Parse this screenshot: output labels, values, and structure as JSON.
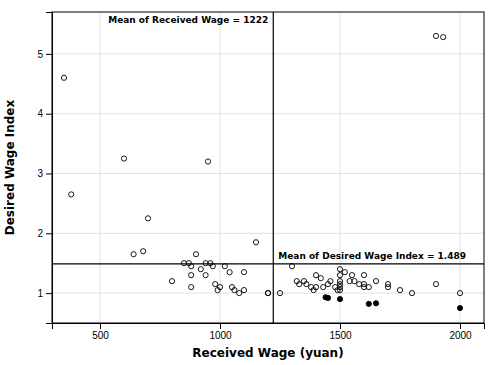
{
  "chart_data": {
    "type": "scatter",
    "x_label": "Received Wage (yuan)",
    "y_label": "Desired Wage Index",
    "xlim": [
      300,
      2100
    ],
    "ylim": [
      0.5,
      5.7
    ],
    "xticks": [
      500,
      1000,
      1500,
      2000
    ],
    "yticks": [
      1,
      2,
      3,
      4,
      5
    ],
    "grid": true,
    "series": [
      {
        "marker": "open",
        "color": "#000000",
        "x": [
          350,
          380,
          600,
          640,
          680,
          700,
          800,
          850,
          870,
          880,
          880,
          880,
          900,
          920,
          940,
          940,
          950,
          960,
          970,
          980,
          990,
          1000,
          1020,
          1040,
          1050,
          1060,
          1080,
          1100,
          1100,
          1150,
          1200,
          1200,
          1250,
          1300,
          1320,
          1330,
          1350,
          1360,
          1380,
          1390,
          1400,
          1400,
          1420,
          1430,
          1450,
          1460,
          1480,
          1490,
          1500,
          1500,
          1500,
          1500,
          1500,
          1500,
          1520,
          1540,
          1550,
          1560,
          1580,
          1600,
          1600,
          1600,
          1620,
          1650,
          1700,
          1700,
          1750,
          1800,
          1900,
          2000,
          1900
        ],
        "values": [
          4.6,
          2.65,
          3.25,
          1.65,
          1.7,
          2.25,
          1.2,
          1.5,
          1.5,
          1.45,
          1.3,
          1.1,
          1.65,
          1.4,
          1.5,
          1.3,
          3.2,
          1.5,
          1.45,
          1.15,
          1.05,
          1.1,
          1.45,
          1.35,
          1.1,
          1.05,
          1.0,
          1.35,
          1.05,
          1.85,
          1.0,
          1.0,
          1.0,
          1.45,
          1.2,
          1.15,
          1.2,
          1.15,
          1.1,
          1.05,
          1.3,
          1.1,
          1.25,
          1.1,
          1.15,
          1.2,
          1.1,
          1.05,
          1.4,
          1.3,
          1.2,
          1.15,
          1.1,
          1.05,
          1.35,
          1.2,
          1.3,
          1.2,
          1.15,
          1.3,
          1.15,
          1.1,
          1.1,
          1.2,
          1.15,
          1.1,
          1.05,
          1.0,
          1.15,
          1.0,
          5.3
        ]
      },
      {
        "marker": "filled",
        "color": "#000000",
        "x": [
          1440,
          1450,
          1500,
          1620,
          1650,
          2000
        ],
        "values": [
          0.93,
          0.92,
          0.9,
          0.82,
          0.83,
          0.75
        ]
      },
      {
        "marker": "open",
        "color": "#000000",
        "x": [
          1930
        ],
        "values": [
          5.28
        ]
      }
    ],
    "reference_lines": [
      {
        "x": 1222,
        "label": "Mean of Received Wage = 1222",
        "color": "#000000"
      },
      {
        "y": 1.489,
        "label": "Mean of Desired Wage Index = 1.489",
        "color": "#000000"
      }
    ]
  }
}
